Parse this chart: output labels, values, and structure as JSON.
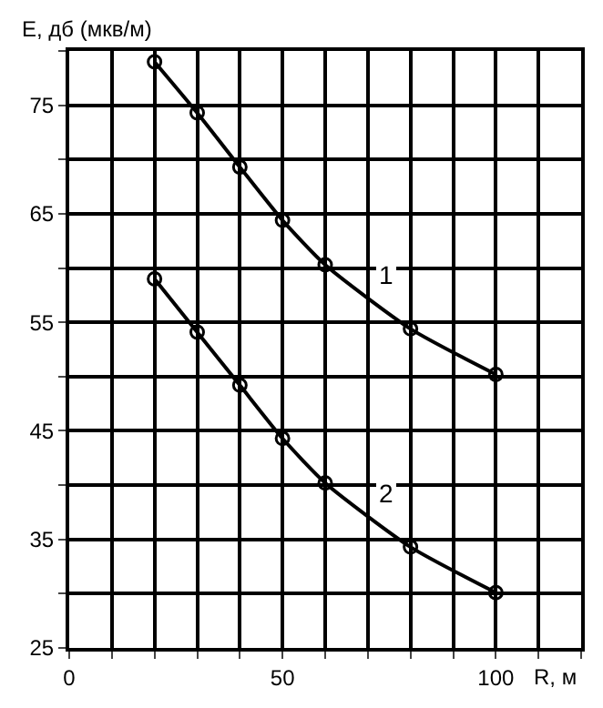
{
  "chart_data": {
    "type": "line",
    "xlabel": "R, м",
    "ylabel": "E, дб (мкв/м)",
    "x": [
      20,
      30,
      40,
      50,
      60,
      80,
      100
    ],
    "series": [
      {
        "name": "1",
        "color": "#000000",
        "values": [
          79,
          74.3,
          69.3,
          64.4,
          60.3,
          54.4,
          50.2
        ]
      },
      {
        "name": "2",
        "color": "#000000",
        "values": [
          59,
          54.1,
          49.2,
          44.3,
          40.2,
          34.3,
          30.1
        ]
      }
    ],
    "xlim": [
      0,
      120
    ],
    "xticks": [
      0,
      {
        "value": 10,
        "label": null
      },
      {
        "value": 20,
        "label": null
      },
      {
        "value": 30,
        "label": null
      },
      {
        "value": 40,
        "label": null
      },
      50,
      {
        "value": 60,
        "label": null
      },
      {
        "value": 70,
        "label": null
      },
      {
        "value": 80,
        "label": null
      },
      {
        "value": 90,
        "label": null
      },
      100,
      {
        "value": 110,
        "label": null
      },
      {
        "value": 120,
        "label": null
      }
    ],
    "ylim": [
      25,
      80
    ],
    "yticks": [
      25,
      {
        "value": 30,
        "label": null
      },
      35,
      {
        "value": 40,
        "label": null
      },
      45,
      {
        "value": 50,
        "label": null
      },
      55,
      {
        "value": 60,
        "label": null
      },
      65,
      {
        "value": 70,
        "label": null
      },
      75,
      {
        "value": 80,
        "label": null
      }
    ],
    "grid": true,
    "marker": "circle",
    "line_style": "solid",
    "legend": false
  }
}
